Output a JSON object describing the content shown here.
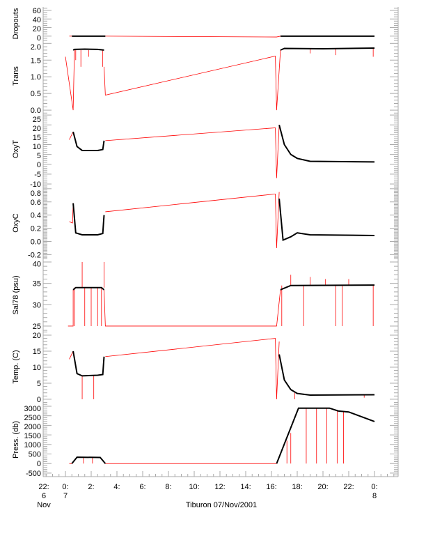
{
  "chart_data": {
    "type": "line",
    "title": "Tiburon 07/Nov/2001",
    "x_unit": "hours from 07 Nov 00:00",
    "xlim": [
      -2,
      25.9
    ],
    "x_ticks": [
      {
        "h": -2,
        "l1": "22:",
        "l2": "6",
        "l3": "Nov"
      },
      {
        "h": 0,
        "l1": "0:",
        "l2": "7",
        "l3": ""
      },
      {
        "h": 2,
        "l1": "2:",
        "l2": "",
        "l3": ""
      },
      {
        "h": 4,
        "l1": "4:",
        "l2": "",
        "l3": ""
      },
      {
        "h": 6,
        "l1": "6:",
        "l2": "",
        "l3": ""
      },
      {
        "h": 8,
        "l1": "8:",
        "l2": "",
        "l3": ""
      },
      {
        "h": 10,
        "l1": "10:",
        "l2": "",
        "l3": ""
      },
      {
        "h": 12,
        "l1": "12:",
        "l2": "",
        "l3": ""
      },
      {
        "h": 14,
        "l1": "14:",
        "l2": "",
        "l3": ""
      },
      {
        "h": 16,
        "l1": "16:",
        "l2": "",
        "l3": ""
      },
      {
        "h": 18,
        "l1": "18:",
        "l2": "",
        "l3": ""
      },
      {
        "h": 20,
        "l1": "20:",
        "l2": "",
        "l3": ""
      },
      {
        "h": 22,
        "l1": "22:",
        "l2": "",
        "l3": ""
      },
      {
        "h": 24,
        "l1": "0:",
        "l2": "8",
        "l3": ""
      }
    ],
    "colors": {
      "good": "#000000",
      "flagged": "#ff0000",
      "axis": "#aaaaaa"
    },
    "panels": [
      {
        "ylabel": "Dropouts",
        "ylim": [
          -10,
          68
        ],
        "ticks": [
          "60",
          "40",
          "20",
          "0"
        ],
        "minor": 5,
        "black": [
          [
            [
              0.5,
              0
            ],
            [
              3.1,
              0
            ]
          ],
          [
            [
              16.7,
              0
            ],
            [
              24,
              0
            ]
          ]
        ],
        "red": [
          [
            [
              0.3,
              0
            ],
            [
              0.5,
              0
            ]
          ],
          [
            [
              3.1,
              0
            ],
            [
              16.4,
              -2
            ],
            [
              16.7,
              0
            ]
          ]
        ],
        "spikes": []
      },
      {
        "ylabel": "Trans",
        "ylim": [
          -0.04,
          2.09
        ],
        "ticks": [
          "2.0",
          "1.5",
          "1.0",
          "0.5",
          "0.0"
        ],
        "minor": 0.1,
        "black": [
          [
            [
              0.6,
              1.8
            ],
            [
              0.7,
              1.82
            ],
            [
              1.5,
              1.83
            ],
            [
              2.5,
              1.82
            ],
            [
              3.0,
              1.8
            ]
          ],
          [
            [
              16.7,
              1.8
            ],
            [
              17,
              1.85
            ],
            [
              20,
              1.84
            ],
            [
              24,
              1.86
            ]
          ]
        ],
        "red": [
          [
            [
              0.0,
              1.6
            ],
            [
              0.6,
              0.0
            ],
            [
              0.7,
              1.8
            ]
          ],
          [
            [
              3.0,
              1.3
            ],
            [
              3.1,
              0.45
            ],
            [
              16.3,
              1.62
            ],
            [
              16.4,
              0.0
            ],
            [
              16.7,
              1.8
            ]
          ]
        ],
        "spikes": [
          [
            0.8,
            1.8,
            1.5
          ],
          [
            1.2,
            1.8,
            1.3
          ],
          [
            1.8,
            1.8,
            1.6
          ],
          [
            2.9,
            1.8,
            1.3
          ],
          [
            19,
            1.85,
            1.7
          ],
          [
            21,
            1.85,
            1.65
          ],
          [
            23.9,
            1.85,
            1.6
          ]
        ]
      },
      {
        "ylabel": "OxyT",
        "ylim": [
          -11.4,
          26.8
        ],
        "ticks": [
          "25",
          "20",
          "15",
          "10",
          "5",
          "0",
          "-5",
          "-10"
        ],
        "minor": 1,
        "black": [
          [
            [
              0.6,
              16.5
            ],
            [
              0.9,
              9
            ],
            [
              1.3,
              7
            ],
            [
              2.5,
              7
            ],
            [
              2.9,
              7.5
            ],
            [
              3.0,
              12
            ]
          ],
          [
            [
              16.6,
              20
            ],
            [
              17,
              10
            ],
            [
              17.5,
              5
            ],
            [
              18,
              3
            ],
            [
              19,
              1.5
            ],
            [
              24,
              1.2
            ]
          ]
        ],
        "red": [
          [
            [
              0.3,
              12.5
            ],
            [
              0.6,
              16.5
            ]
          ],
          [
            [
              3.1,
              12
            ],
            [
              16.3,
              18.5
            ],
            [
              16.4,
              -7
            ],
            [
              16.6,
              20
            ]
          ]
        ],
        "spikes": []
      },
      {
        "ylabel": "OxyC",
        "ylim": [
          -0.27,
          0.83
        ],
        "ticks": [
          "0.8",
          "0.6",
          "0.4",
          "0.2",
          "0.0",
          "-0.2"
        ],
        "minor": 0.02,
        "black": [
          [
            [
              0.6,
              0.58
            ],
            [
              0.8,
              0.13
            ],
            [
              1.3,
              0.1
            ],
            [
              2.5,
              0.1
            ],
            [
              2.9,
              0.12
            ],
            [
              3.0,
              0.4
            ]
          ],
          [
            [
              16.6,
              0.65
            ],
            [
              16.9,
              0.02
            ],
            [
              17.5,
              0.07
            ],
            [
              18,
              0.13
            ],
            [
              19,
              0.1
            ],
            [
              24,
              0.09
            ]
          ]
        ],
        "red": [
          [
            [
              0.3,
              0.3
            ],
            [
              0.55,
              0.28
            ],
            [
              0.6,
              0.58
            ]
          ],
          [
            [
              3.1,
              0.45
            ],
            [
              16.3,
              0.72
            ],
            [
              16.4,
              -0.1
            ],
            [
              16.6,
              0.75
            ]
          ]
        ],
        "spikes": []
      },
      {
        "ylabel": "Sal78 (psu)",
        "ylim": [
          23.85,
          40.65
        ],
        "ticks": [
          "40",
          "35",
          "30",
          "25"
        ],
        "minor": 1,
        "black": [
          [
            [
              0.6,
              33.5
            ],
            [
              0.8,
              34
            ],
            [
              2.8,
              34
            ],
            [
              3.0,
              33.5
            ]
          ],
          [
            [
              16.7,
              33.5
            ],
            [
              17.5,
              34.5
            ],
            [
              24,
              34.6
            ]
          ]
        ],
        "red": [
          [
            [
              0.2,
              25
            ],
            [
              0.6,
              25
            ],
            [
              0.6,
              33.5
            ]
          ],
          [
            [
              3.0,
              33.5
            ],
            [
              3.1,
              25
            ],
            [
              16.4,
              25
            ],
            [
              16.7,
              33.5
            ]
          ]
        ],
        "spikes": [
          [
            0.7,
            34,
            25
          ],
          [
            1.3,
            34,
            40
          ],
          [
            1.5,
            34,
            25
          ],
          [
            2.0,
            34,
            25
          ],
          [
            2.5,
            34,
            25
          ],
          [
            2.8,
            34,
            25
          ],
          [
            3.0,
            34,
            40
          ],
          [
            16.8,
            34.5,
            25
          ],
          [
            17.5,
            34.5,
            37
          ],
          [
            18.5,
            34.5,
            25
          ],
          [
            19,
            34.5,
            36.5
          ],
          [
            20.2,
            34.5,
            36
          ],
          [
            21,
            34.5,
            25
          ],
          [
            21.5,
            34.5,
            25
          ],
          [
            22,
            34.5,
            36
          ],
          [
            23.9,
            34.6,
            25
          ]
        ]
      },
      {
        "ylabel": "Temp. (C)",
        "ylim": [
          -1.1,
          21.3
        ],
        "ticks": [
          "20",
          "15",
          "10",
          "5",
          "0"
        ],
        "minor": 1,
        "black": [
          [
            [
              0.6,
              15
            ],
            [
              0.9,
              8
            ],
            [
              1.3,
              7.3
            ],
            [
              2.5,
              7.5
            ],
            [
              2.9,
              7.7
            ],
            [
              3.0,
              13.3
            ]
          ],
          [
            [
              16.6,
              14
            ],
            [
              17,
              6
            ],
            [
              17.5,
              3
            ],
            [
              18,
              1.8
            ],
            [
              19,
              1.3
            ],
            [
              24,
              1.4
            ]
          ]
        ],
        "red": [
          [
            [
              0.3,
              12.5
            ],
            [
              0.6,
              15
            ]
          ],
          [
            [
              3.1,
              13.3
            ],
            [
              16.3,
              19
            ],
            [
              16.4,
              0
            ],
            [
              16.6,
              18
            ]
          ]
        ],
        "spikes": [
          [
            1.3,
            7.3,
            0
          ],
          [
            2.2,
            7.5,
            0
          ],
          [
            17.8,
            2,
            0
          ],
          [
            23.2,
            1.4,
            0.5
          ]
        ]
      },
      {
        "ylabel": "Press. (db)",
        "ylim": [
          -685,
          3182
        ],
        "ticks": [
          "3000",
          "2500",
          "2000",
          "1500",
          "1000",
          "500",
          "0",
          "-500"
        ],
        "minor": 100,
        "black": [
          [
            [
              0.5,
              0
            ],
            [
              0.9,
              330
            ],
            [
              2.7,
              320
            ],
            [
              3.1,
              0
            ]
          ],
          [
            [
              16.4,
              0
            ],
            [
              18.1,
              2900
            ],
            [
              20.5,
              2900
            ],
            [
              21.2,
              2750
            ],
            [
              22,
              2700
            ],
            [
              24,
              2200
            ]
          ]
        ],
        "red": [
          [
            [
              0.3,
              0
            ],
            [
              0.5,
              0
            ]
          ],
          [
            [
              3.1,
              0
            ],
            [
              16.4,
              0
            ]
          ]
        ],
        "spikes": [
          [
            1.4,
            330,
            0
          ],
          [
            2.1,
            330,
            0
          ],
          [
            17.2,
            1200,
            0
          ],
          [
            17.5,
            1600,
            0
          ],
          [
            18.7,
            2900,
            0
          ],
          [
            19.5,
            2900,
            0
          ],
          [
            20.3,
            2900,
            0
          ],
          [
            21.1,
            2750,
            0
          ],
          [
            21.6,
            2700,
            0
          ]
        ]
      }
    ]
  }
}
